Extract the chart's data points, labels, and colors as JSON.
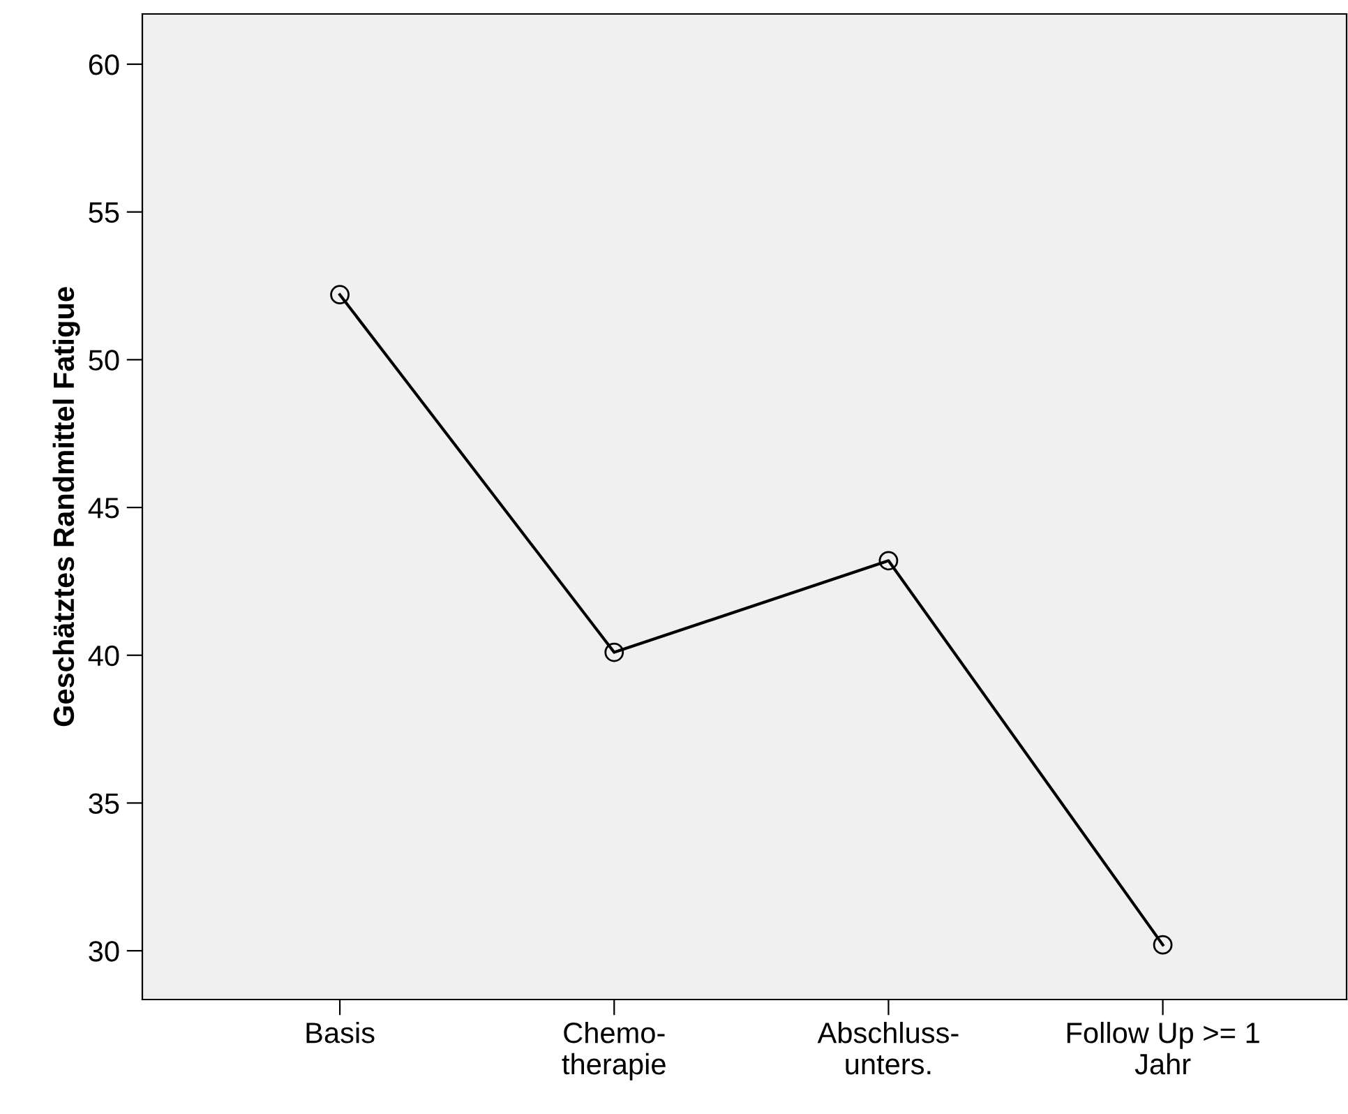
{
  "chart_data": {
    "type": "line",
    "ylabel": "Geschätztes Randmittel Fatigue",
    "categories": [
      "Basis",
      "Chemo-\ntherapie",
      "Abschluss-\nunters.",
      "Follow Up >= 1\nJahr"
    ],
    "series": [
      {
        "color": "#000000",
        "values": [
          52.2,
          40.1,
          43.2,
          30.2
        ]
      }
    ],
    "ylim": [
      28.35,
      61.7
    ],
    "yticks": [
      30,
      35,
      40,
      45,
      50,
      55,
      60
    ],
    "marker": "circle",
    "line_style": "solid",
    "grid": false
  }
}
